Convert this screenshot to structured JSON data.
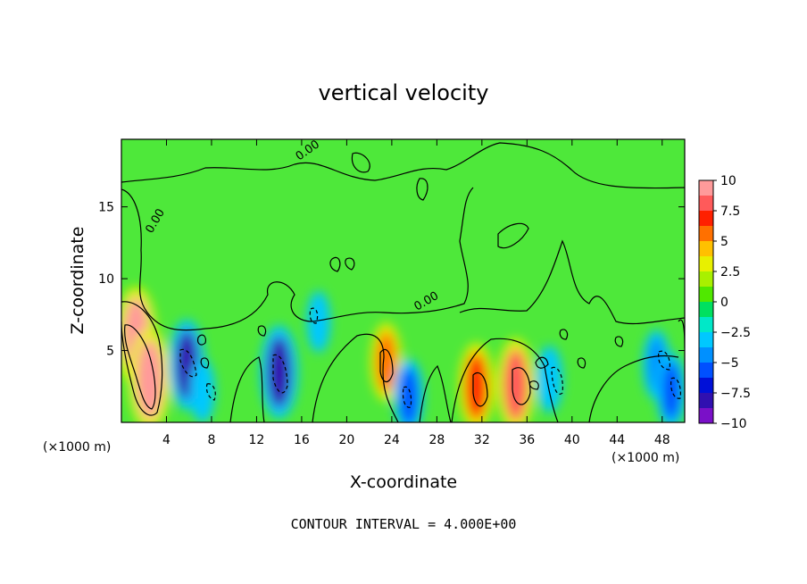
{
  "chart_data": {
    "type": "heatmap",
    "title": "vertical velocity",
    "xlabel": "X-coordinate",
    "ylabel": "Z-coordinate",
    "x_unit_left": "(×1000 m)",
    "x_unit_right": "(×1000 m)",
    "footer": "CONTOUR INTERVAL = 4.000E+00",
    "xlim": [
      0,
      50
    ],
    "ylim": [
      0,
      19.7
    ],
    "x_ticks": [
      4,
      8,
      12,
      16,
      20,
      24,
      28,
      32,
      36,
      40,
      44,
      48
    ],
    "y_ticks": [
      5,
      10,
      15
    ],
    "colorbar": {
      "min": -10,
      "max": 10,
      "ticks": [
        "10",
        "7.5",
        "5",
        "2.5",
        "0",
        "−2.5",
        "−5",
        "−7.5",
        "−10"
      ],
      "colors": [
        "#ff9a9a",
        "#ff5a5a",
        "#ff2000",
        "#ff7000",
        "#ffc000",
        "#e8f000",
        "#a8f000",
        "#50e800",
        "#00e060",
        "#00e8c8",
        "#00c8ff",
        "#0090ff",
        "#0050ff",
        "#0010d8",
        "#3010b0",
        "#7a10c8"
      ]
    },
    "contour_labels": [
      "0.00",
      "0.00",
      "0.00"
    ],
    "features": [
      {
        "x": 1.3,
        "z": 6.0,
        "w": 9.0
      },
      {
        "x": 2.5,
        "z": 3.0,
        "w": 9.5
      },
      {
        "x": 5.8,
        "z": 4.0,
        "w": -7.5
      },
      {
        "x": 7.2,
        "z": 2.2,
        "w": -3.0
      },
      {
        "x": 14.0,
        "z": 3.5,
        "w": -8.0
      },
      {
        "x": 17.5,
        "z": 7.0,
        "w": -2.5
      },
      {
        "x": 23.5,
        "z": 4.2,
        "w": 5.5
      },
      {
        "x": 25.5,
        "z": 1.8,
        "w": -5.0
      },
      {
        "x": 31.5,
        "z": 2.5,
        "w": 7.0
      },
      {
        "x": 35.0,
        "z": 2.6,
        "w": 8.0
      },
      {
        "x": 38.0,
        "z": 3.0,
        "w": -3.5
      },
      {
        "x": 47.5,
        "z": 4.0,
        "w": -4.0
      },
      {
        "x": 48.8,
        "z": 2.2,
        "w": -5.0
      }
    ]
  }
}
